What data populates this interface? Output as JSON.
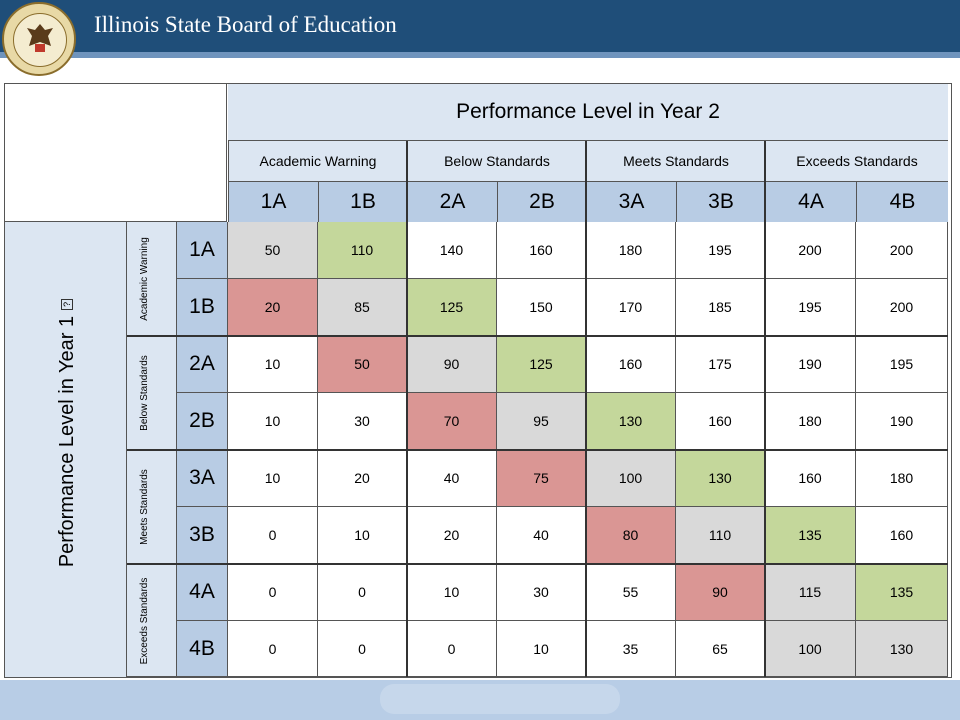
{
  "header": {
    "title": "Illinois  State Board of Education"
  },
  "table": {
    "column_title": "Performance Level in Year 2",
    "row_title": "Performance Level in Year 1",
    "column_groups": [
      "Academic Warning",
      "Below Standards",
      "Meets Standards",
      "Exceeds Standards"
    ],
    "row_groups": [
      "Academic Warning",
      "Below Standards",
      "Meets Standards",
      "Exceeds Standards"
    ],
    "levels": [
      "1A",
      "1B",
      "2A",
      "2B",
      "3A",
      "3B",
      "4A",
      "4B"
    ],
    "values": [
      [
        50,
        110,
        140,
        160,
        180,
        195,
        200,
        200
      ],
      [
        20,
        85,
        125,
        150,
        170,
        185,
        195,
        200
      ],
      [
        10,
        50,
        90,
        125,
        160,
        175,
        190,
        195
      ],
      [
        10,
        30,
        70,
        95,
        130,
        160,
        180,
        190
      ],
      [
        10,
        20,
        40,
        75,
        100,
        130,
        160,
        180
      ],
      [
        0,
        10,
        20,
        40,
        80,
        110,
        135,
        160
      ],
      [
        0,
        0,
        10,
        30,
        55,
        90,
        115,
        135
      ],
      [
        0,
        0,
        0,
        10,
        35,
        65,
        100,
        130
      ]
    ],
    "cell_colors": {
      "diagonal": "#d9d9d9",
      "above_diagonal": "#c4d79b",
      "below_diagonal": "#da9694",
      "other": "#ffffff"
    }
  }
}
